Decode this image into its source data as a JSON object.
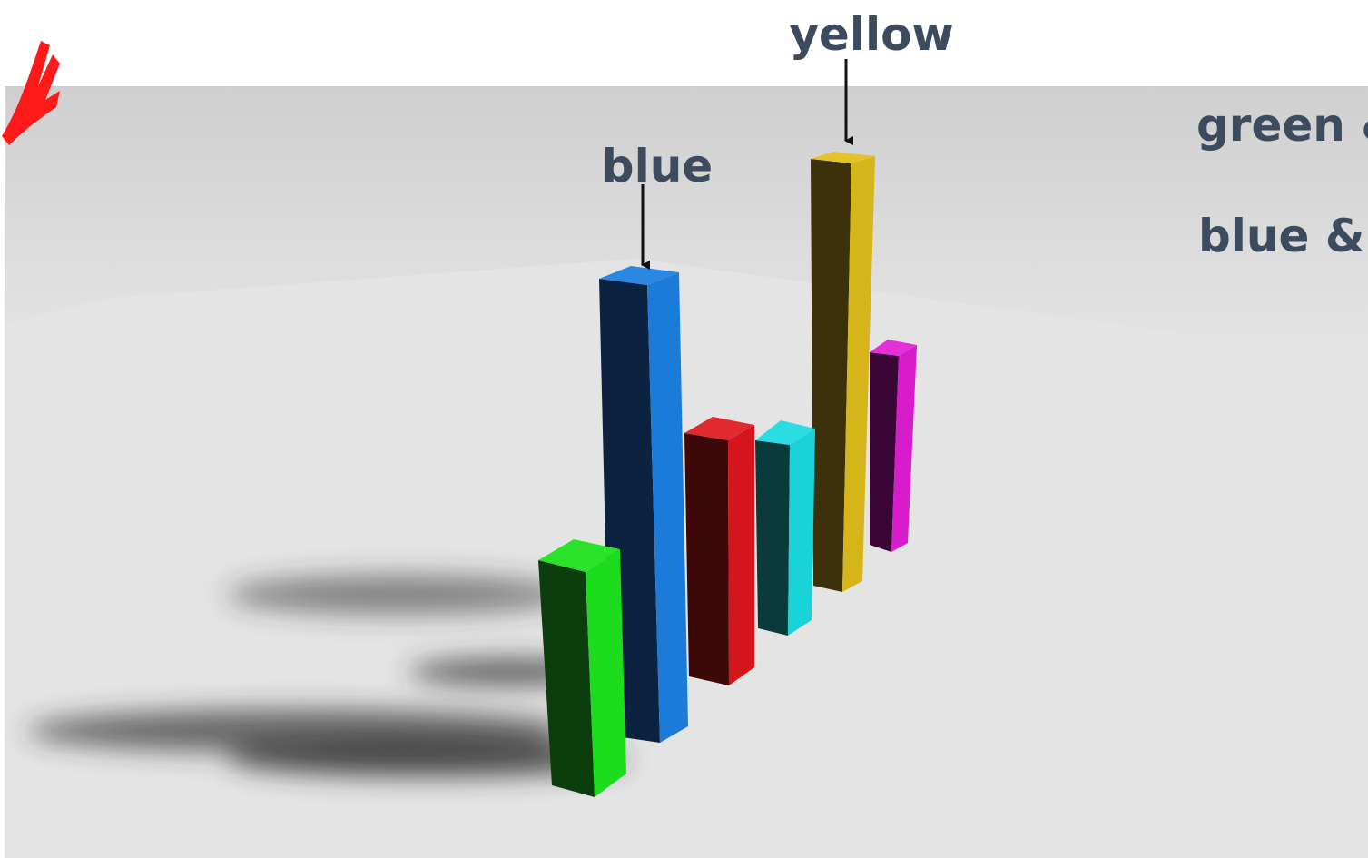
{
  "annotations": [
    {
      "text": "yellow"
    },
    {
      "text": "blue"
    }
  ],
  "side_text": [
    "green &",
    "blue &"
  ]
}
